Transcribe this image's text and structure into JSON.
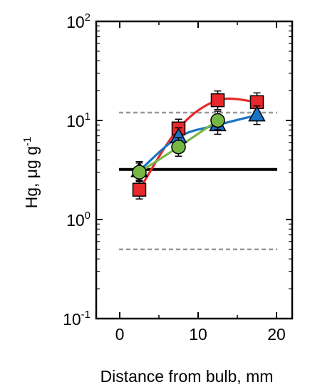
{
  "chart_data": {
    "type": "line",
    "xlabel": "Distance from bulb, mm",
    "ylabel": "Hg, μg g",
    "ylabel_exponent": "-1",
    "xlim": [
      -3,
      22
    ],
    "ylim": [
      0.1,
      100
    ],
    "yscale": "log",
    "x_ticks": [
      0,
      10,
      20
    ],
    "x_tick_labels": [
      "0",
      "10",
      "20"
    ],
    "y_ticks": [
      0.1,
      1,
      10,
      100
    ],
    "y_tick_labels": [
      {
        "base": "10",
        "exp": "-1"
      },
      {
        "base": "10",
        "exp": "0"
      },
      {
        "base": "10",
        "exp": "1"
      },
      {
        "base": "10",
        "exp": "2"
      }
    ],
    "grid": false,
    "series": [
      {
        "marker": "square",
        "color": "#e8282a",
        "x": [
          2.5,
          7.5,
          12.5,
          17.5
        ],
        "y": [
          2.0,
          8.3,
          16.0,
          15.3
        ]
      },
      {
        "marker": "triangle",
        "color": "#1a73c4",
        "x": [
          2.5,
          7.5,
          12.5,
          17.5
        ],
        "y": [
          3.1,
          6.8,
          9.0,
          11.3
        ]
      },
      {
        "marker": "circle",
        "color": "#76b843",
        "x": [
          2.5,
          7.5,
          12.5
        ],
        "y": [
          3.0,
          5.4,
          10.0
        ]
      }
    ],
    "reference_lines": [
      {
        "y": 3.2,
        "style": "solid",
        "color": "#000000"
      },
      {
        "y": 12.0,
        "style": "dashed",
        "color": "#999999"
      },
      {
        "y": 0.5,
        "style": "dashed",
        "color": "#999999"
      }
    ]
  }
}
